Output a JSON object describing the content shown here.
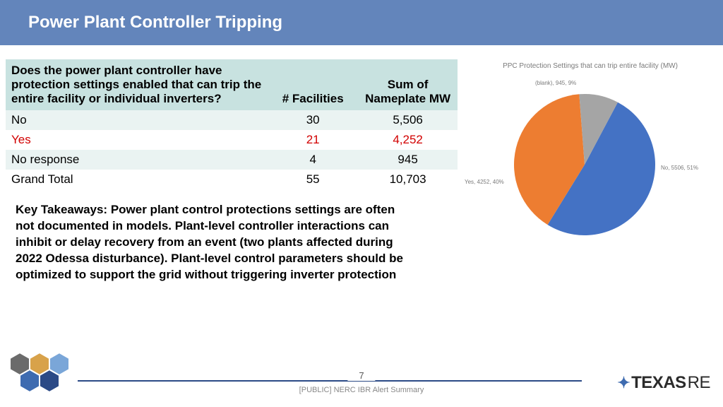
{
  "header": {
    "title": "Power Plant Controller Tripping"
  },
  "table": {
    "columns": {
      "question": "Does the power plant controller have protection settings enabled that can trip the entire facility or individual inverters?",
      "facilities": "# Facilities",
      "nameplate": "Sum of Nameplate MW"
    },
    "rows": [
      {
        "label": "No",
        "facilities": "30",
        "mw": "5,506",
        "highlight": false,
        "band": true
      },
      {
        "label": "Yes",
        "facilities": "21",
        "mw": "4,252",
        "highlight": true,
        "band": false
      },
      {
        "label": "No response",
        "facilities": "4",
        "mw": "945",
        "highlight": false,
        "band": true
      },
      {
        "label": "Grand Total",
        "facilities": "55",
        "mw": "10,703",
        "highlight": false,
        "band": false
      }
    ]
  },
  "takeaway": "Key Takeaways: Power plant control protections settings are often not documented in models. Plant-level controller interactions can inhibit or delay recovery from an event (two plants affected during 2022 Odessa disturbance). Plant-level control parameters should be optimized to support the grid without triggering inverter protection",
  "chart": {
    "title": "PPC Protection Settings that can trip entire facility (MW)",
    "type": "pie",
    "slices": [
      {
        "label": "No, 5506, 51%",
        "value": 5506,
        "pct": 51,
        "color": "#4472c4"
      },
      {
        "label": "Yes, 4252, 40%",
        "value": 4252,
        "pct": 40,
        "color": "#ed7d31"
      },
      {
        "label": "(blank), 945, 9%",
        "value": 945,
        "pct": 9,
        "color": "#a5a5a5"
      }
    ],
    "background": "#ffffff",
    "radius": 100,
    "start_angle_deg": -62,
    "label_fontsize": 8,
    "label_color": "#7a7a7a"
  },
  "footer": {
    "page": "7",
    "subtitle": "[PUBLIC] NERC IBR Alert Summary",
    "logo_text_main": "TEXAS",
    "logo_text_suffix": "RE",
    "line_color": "#2b4a86"
  }
}
